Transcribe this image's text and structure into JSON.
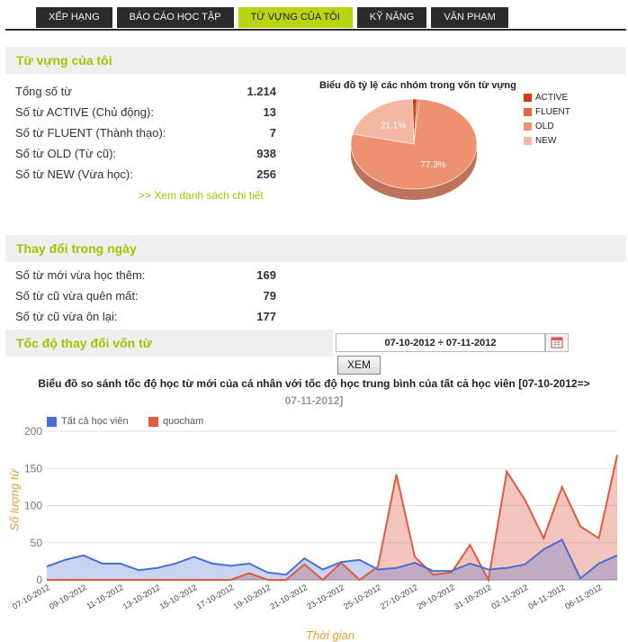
{
  "tabs": [
    {
      "label": "XẾP HẠNG",
      "active": false
    },
    {
      "label": "BÁO CÁO HỌC TẬP",
      "active": false
    },
    {
      "label": "TỪ VỰNG CỦA TÔI",
      "active": true
    },
    {
      "label": "KỸ NĂNG",
      "active": false
    },
    {
      "label": "VĂN PHẠM",
      "active": false
    }
  ],
  "vocab": {
    "heading": "Từ vựng của tôi",
    "stats": [
      {
        "label": "Tổng số từ",
        "value": "1.214"
      },
      {
        "label": "Số từ ACTIVE (Chủ động):",
        "value": "13"
      },
      {
        "label": "Số từ FLUENT (Thành thạo):",
        "value": "7"
      },
      {
        "label": "Số từ OLD (Từ cũ):",
        "value": "938"
      },
      {
        "label": "Số từ NEW (Vừa học):",
        "value": "256"
      }
    ],
    "detail_link": ">> Xem danh sách chi tiết"
  },
  "daily": {
    "heading": "Thay đổi trong ngày",
    "stats": [
      {
        "label": "Số từ mới vừa học thêm:",
        "value": "169"
      },
      {
        "label": "Số từ cũ vừa quên mất:",
        "value": "79"
      },
      {
        "label": "Số từ cũ vừa ôn lại:",
        "value": "177"
      }
    ]
  },
  "speed": {
    "heading": "Tốc độ thay đổi vốn từ",
    "date_range": "07-10-2012 ÷ 07-11-2012",
    "submit_label": "XEM"
  },
  "chart_data": [
    {
      "type": "pie",
      "title": "Biểu đồ tỷ lệ các nhóm trong vốn từ vựng",
      "categories": [
        "ACTIVE",
        "FLUENT",
        "OLD",
        "NEW"
      ],
      "values": [
        1.1,
        0.6,
        77.3,
        21.1
      ],
      "data_labels": [
        "",
        "",
        "77.3%",
        "21.1%"
      ],
      "colors": [
        "#d4380d",
        "#e8623a",
        "#ee9170",
        "#f4b8a2"
      ],
      "legend": "right"
    },
    {
      "type": "area",
      "title": "Biểu đồ so sánh tốc độ học từ mới của cá nhân với tốc độ học trung bình của tất cả học viên [07-10-2012=>",
      "subtitle": "07-11-2012]",
      "xlabel": "Thời gian",
      "ylabel": "Số lượng từ",
      "ylim": [
        0,
        200
      ],
      "yticks": [
        0,
        50,
        100,
        150,
        200
      ],
      "grid": true,
      "legend": "top-left",
      "x": [
        "07-10-2012",
        "08-10-2012",
        "09-10-2012",
        "10-10-2012",
        "11-10-2012",
        "12-10-2012",
        "13-10-2012",
        "14-10-2012",
        "15-10-2012",
        "16-10-2012",
        "17-10-2012",
        "18-10-2012",
        "19-10-2012",
        "20-10-2012",
        "21-10-2012",
        "22-10-2012",
        "23-10-2012",
        "24-10-2012",
        "25-10-2012",
        "26-10-2012",
        "27-10-2012",
        "28-10-2012",
        "29-10-2012",
        "30-10-2012",
        "31-10-2012",
        "01-11-2012",
        "02-11-2012",
        "03-11-2012",
        "04-11-2012",
        "05-11-2012",
        "06-11-2012",
        "07-11-2012"
      ],
      "x_tick_labels": [
        "07-10-2012",
        "09-10-2012",
        "11-10-2012",
        "13-10-2012",
        "15-10-2012",
        "17-10-2012",
        "19-10-2012",
        "21-10-2012",
        "23-10-2012",
        "25-10-2012",
        "27-10-2012",
        "29-10-2012",
        "31-10-2012",
        "02-11-2012",
        "04-11-2012",
        "06-11-2012"
      ],
      "series": [
        {
          "name": "Tất cả học viên",
          "color": "#4a6fd4",
          "values": [
            18,
            27,
            33,
            22,
            22,
            13,
            16,
            22,
            31,
            22,
            19,
            22,
            10,
            7,
            29,
            14,
            24,
            27,
            14,
            16,
            23,
            12,
            12,
            22,
            14,
            16,
            21,
            41,
            54,
            2,
            22,
            33
          ]
        },
        {
          "name": "quocham",
          "color": "#e05a40",
          "values": [
            0,
            0,
            0,
            0,
            0,
            0,
            0,
            0,
            0,
            0,
            0,
            9,
            0,
            0,
            21,
            0,
            23,
            0,
            18,
            142,
            31,
            7,
            10,
            47,
            0,
            146,
            107,
            56,
            125,
            72,
            56,
            168
          ]
        }
      ]
    }
  ]
}
